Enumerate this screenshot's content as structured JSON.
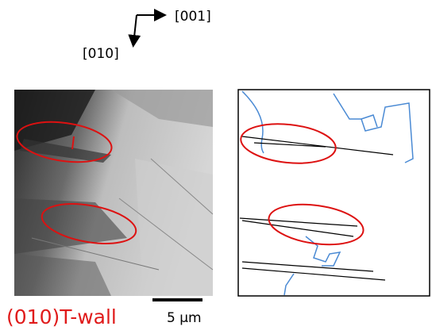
{
  "axes": {
    "horizontal_label": "[001]",
    "vertical_label": "[010]"
  },
  "caption": "(010)T-wall",
  "scale_bar": {
    "label": "5 μm"
  }
}
